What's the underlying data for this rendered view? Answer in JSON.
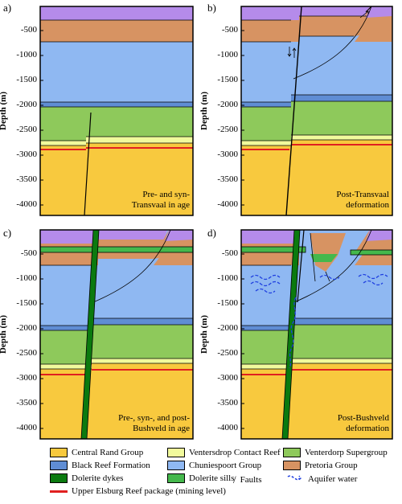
{
  "panels": [
    {
      "letter": "a)",
      "caption": [
        "Pre- and syn-",
        "Transvaal in age"
      ]
    },
    {
      "letter": "b)",
      "caption": [
        "Post-Transvaal",
        "deformation"
      ]
    },
    {
      "letter": "c)",
      "caption": [
        "Pre-, syn-, and post-",
        "Bushveld in age"
      ]
    },
    {
      "letter": "d)",
      "caption": [
        "Post-Bushveld",
        "deformation"
      ]
    }
  ],
  "axis": {
    "ylabel": "Depth (m)",
    "ticks": [
      "-500",
      "-1000",
      "-1500",
      "-2000",
      "-2500",
      "-3000",
      "-3500",
      "-4000"
    ]
  },
  "colors": {
    "central_rand": "#f8c93e",
    "ventersdorp_contact_reef": "#f1fa9c",
    "ventersdorp_supergroup": "#8ec95b",
    "black_reef": "#5f8dd4",
    "chuniespoort": "#8fb8f2",
    "pretoria": "#d79362",
    "top_unit": "#b58bea",
    "dolerite_dykes": "#0b7a0f",
    "dolerite_sills": "#45b84c",
    "elsburg": "#e02020",
    "aquifer": "#1f3fe0"
  },
  "legend": {
    "central_rand": "Central Rand Group",
    "ventersdorp_contact_reef": "Ventersdrop Contact Reef",
    "ventersdorp_supergroup": "Venterdorp Supergroup",
    "black_reef": "Black Reef Formation",
    "chuniespoort": "Chuniespoort Group",
    "pretoria": "Pretoria Group",
    "dolerite_dykes": "Dolerite dykes",
    "dolerite_sills": "Dolerite sills",
    "faults": "Faults",
    "aquifer": "Aquifer water",
    "elsburg": "Upper Elsburg Reef package (mining level)"
  }
}
